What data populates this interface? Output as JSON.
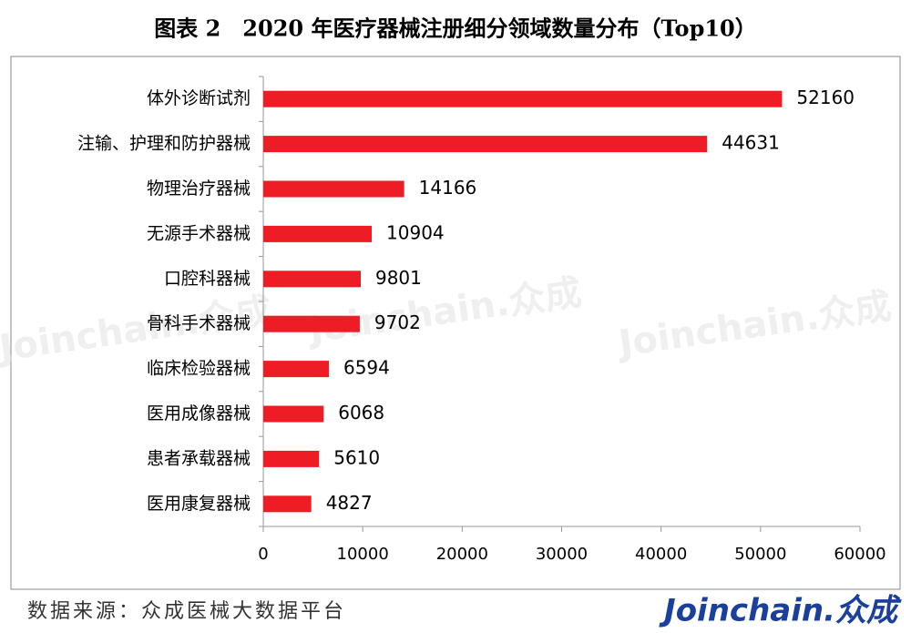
{
  "chart_data": {
    "type": "bar",
    "orientation": "horizontal",
    "title": "图表 2　2020 年医疗器械注册细分领域数量分布（Top10）",
    "categories": [
      "体外诊断试剂",
      "注输、护理和防护器械",
      "物理治疗器械",
      "无源手术器械",
      "口腔科器械",
      "骨科手术器械",
      "临床检验器械",
      "医用成像器械",
      "患者承载器械",
      "医用康复器械"
    ],
    "values": [
      52160,
      44631,
      14166,
      10904,
      9801,
      9702,
      6594,
      6068,
      5610,
      4827
    ],
    "color": "#ee1c25",
    "xlim": [
      0,
      60000
    ],
    "xticks": [
      0,
      10000,
      20000,
      30000,
      40000,
      50000,
      60000
    ],
    "grid": false
  },
  "source": "数据来源：众成医械大数据平台",
  "logo": "Joinchain.众成"
}
